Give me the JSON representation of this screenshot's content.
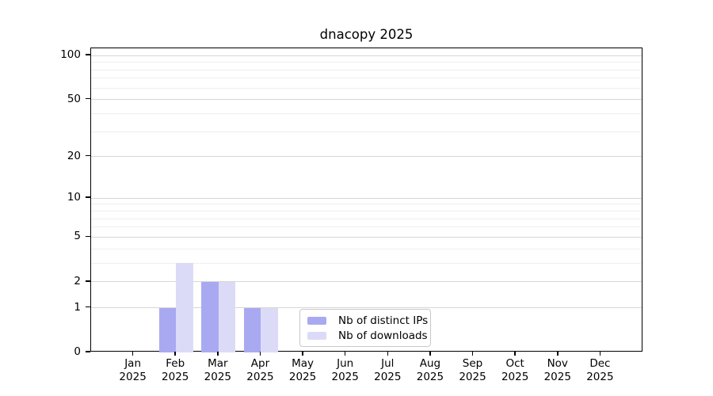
{
  "chart_data": {
    "type": "bar",
    "title": "dnacopy 2025",
    "yscale": "log1p",
    "grid": true,
    "categories": [
      "Jan",
      "Feb",
      "Mar",
      "Apr",
      "May",
      "Jun",
      "Jul",
      "Aug",
      "Sep",
      "Oct",
      "Nov",
      "Dec"
    ],
    "x_year": "2025",
    "series": [
      {
        "name": "Nb of distinct IPs",
        "color": "#a9a9f2",
        "values": [
          0,
          1,
          2,
          1,
          0,
          0,
          0,
          0,
          0,
          0,
          0,
          0
        ]
      },
      {
        "name": "Nb of downloads",
        "color": "#dbdbf8",
        "values": [
          0,
          3,
          2,
          1,
          0,
          0,
          0,
          0,
          0,
          0,
          0,
          0
        ]
      }
    ],
    "yticks": [
      0,
      1,
      2,
      5,
      10,
      20,
      50,
      100
    ],
    "minor_gridlines": [
      3,
      4,
      6,
      7,
      8,
      9,
      30,
      40,
      60,
      70,
      80,
      90
    ],
    "ylim": [
      0,
      112
    ],
    "legend_position": "lower center"
  },
  "colors": {
    "background": "#ffffff",
    "axis": "#000000",
    "major_grid": "#d6d6d6",
    "minor_grid": "#efefef",
    "legend_border": "#c9c9c9"
  }
}
